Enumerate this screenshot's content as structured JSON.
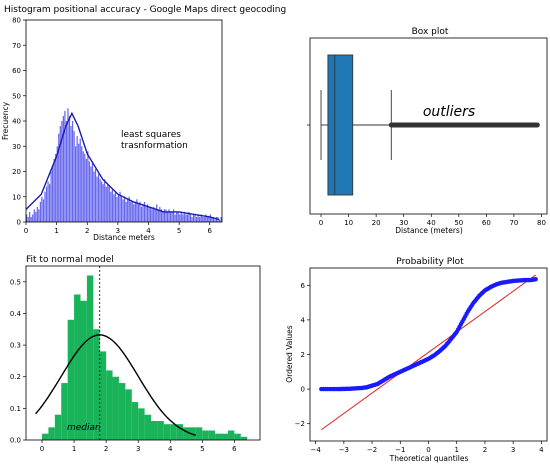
{
  "chart_data": [
    {
      "id": "hist",
      "type": "bar",
      "title": "Histogram positional accuracy - Google Maps direct geocoding",
      "xlabel": "Distance meters",
      "ylabel": "Frecuency",
      "xlim": [
        0,
        6.4
      ],
      "ylim": [
        0,
        80
      ],
      "xticks": [
        "0",
        "1",
        "2",
        "3",
        "4",
        "5",
        "6"
      ],
      "yticks": [
        "0",
        "10",
        "20",
        "30",
        "40",
        "50",
        "60",
        "70",
        "80"
      ],
      "annotation": "least squares\ntrasnformation",
      "bar_color": "#6666ee",
      "curve_color": "#1a1ab0",
      "bin_width": 0.05,
      "values": [
        3,
        2,
        4,
        2,
        3,
        5,
        4,
        6,
        5,
        8,
        10,
        9,
        12,
        14,
        16,
        15,
        20,
        22,
        25,
        27,
        30,
        35,
        38,
        40,
        42,
        44,
        40,
        45,
        42,
        38,
        40,
        36,
        30,
        34,
        31,
        33,
        30,
        28,
        27,
        25,
        28,
        24,
        22,
        24,
        20,
        21,
        18,
        19,
        17,
        16,
        15,
        17,
        14,
        15,
        14,
        12,
        13,
        11,
        12,
        10,
        11,
        12,
        10,
        9,
        10,
        8,
        9,
        10,
        8,
        8,
        7,
        8,
        9,
        7,
        8,
        6,
        7,
        8,
        6,
        7,
        6,
        6,
        5,
        6,
        5,
        7,
        5,
        6,
        5,
        4,
        5,
        5,
        4,
        5,
        4,
        4,
        5,
        3,
        4,
        4,
        3,
        4,
        3,
        4,
        3,
        3,
        4,
        3,
        2,
        3,
        3,
        2,
        3,
        2,
        3,
        2,
        2,
        3,
        2,
        2,
        3,
        2,
        2,
        1,
        2,
        2,
        1,
        2
      ],
      "curve": {
        "x": [
          0,
          0.5,
          1.0,
          1.3,
          1.5,
          1.7,
          2.0,
          2.5,
          3.0,
          3.5,
          4.0,
          4.5,
          5.0,
          5.5,
          6.0,
          6.3
        ],
        "y": [
          5,
          11,
          26,
          38,
          43,
          38,
          27,
          17,
          11,
          8,
          6,
          4,
          4,
          3,
          2,
          1
        ]
      }
    },
    {
      "id": "box",
      "type": "box",
      "title": "Box plot",
      "xlabel": "Distance (meters)",
      "xlim": [
        -4,
        82
      ],
      "xticks": [
        "0",
        "10",
        "20",
        "30",
        "40",
        "50",
        "60",
        "70",
        "80"
      ],
      "whisker_low": 0,
      "q1": 2.5,
      "median": 5,
      "q3": 11.5,
      "whisker_high": 25.5,
      "outliers_from": 25.5,
      "outliers_to": 78.5,
      "annotation": "outliers",
      "box_color": "#1f77b4"
    },
    {
      "id": "normal",
      "type": "bar",
      "title": "Fit to normal model",
      "xlim": [
        -0.5,
        6.8
      ],
      "ylim": [
        0,
        0.55
      ],
      "xticks": [
        "0",
        "1",
        "2",
        "3",
        "4",
        "5",
        "6"
      ],
      "yticks": [
        "0.0",
        "0.1",
        "0.2",
        "0.3",
        "0.4",
        "0.5"
      ],
      "annotation": "median",
      "median_x": 1.8,
      "bar_color": "#19b35a",
      "bin_start": 0.0,
      "bin_width": 0.2,
      "values": [
        0.02,
        0.04,
        0.08,
        0.18,
        0.38,
        0.46,
        0.44,
        0.52,
        0.35,
        0.28,
        0.22,
        0.2,
        0.18,
        0.16,
        0.12,
        0.1,
        0.08,
        0.06,
        0.06,
        0.05,
        0.05,
        0.05,
        0.04,
        0.04,
        0.04,
        0.03,
        0.03,
        0.02,
        0.02,
        0.03,
        0.02,
        0.01
      ],
      "fit": {
        "mean": 1.8,
        "sd": 1.2
      }
    },
    {
      "id": "prob",
      "type": "scatter",
      "title": "Probability Plot",
      "xlabel": "Theoretical quantiles",
      "ylabel": "Ordered Values",
      "xlim": [
        -4.2,
        4.2
      ],
      "ylim": [
        -3,
        7
      ],
      "xticks": [
        "−4",
        "−3",
        "−2",
        "−1",
        "0",
        "1",
        "2",
        "3",
        "4"
      ],
      "yticks": [
        "−2",
        "0",
        "2",
        "4",
        "6"
      ],
      "point_color": "#1a1aff",
      "line_color": "#dd2222",
      "line": {
        "x": [
          -3.8,
          3.8
        ],
        "y": [
          -2.35,
          6.6
        ]
      },
      "points": {
        "x": [
          -3.8,
          -3.5,
          -3.2,
          -3.0,
          -2.8,
          -2.6,
          -2.4,
          -2.2,
          -2.0,
          -1.8,
          -1.6,
          -1.4,
          -1.2,
          -1.0,
          -0.8,
          -0.6,
          -0.4,
          -0.2,
          0.0,
          0.2,
          0.4,
          0.6,
          0.8,
          1.0,
          1.2,
          1.4,
          1.6,
          1.8,
          2.0,
          2.2,
          2.4,
          2.6,
          2.8,
          3.0,
          3.2,
          3.4,
          3.6,
          3.8
        ],
        "y": [
          0.0,
          0.0,
          0.0,
          0.01,
          0.02,
          0.04,
          0.06,
          0.1,
          0.2,
          0.3,
          0.5,
          0.7,
          0.85,
          1.0,
          1.15,
          1.3,
          1.45,
          1.6,
          1.75,
          1.95,
          2.2,
          2.5,
          2.9,
          3.3,
          3.9,
          4.5,
          5.0,
          5.4,
          5.7,
          5.9,
          6.05,
          6.15,
          6.2,
          6.25,
          6.28,
          6.3,
          6.3,
          6.35
        ]
      }
    }
  ]
}
